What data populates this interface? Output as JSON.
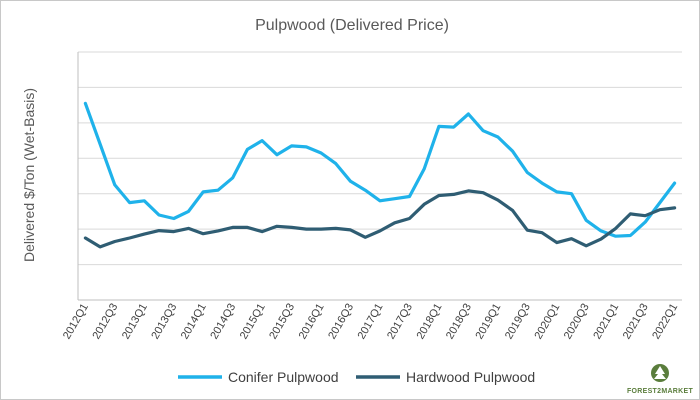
{
  "chart_data": {
    "type": "line",
    "title": "Pulpwood (Delivered Price)",
    "ylabel": "Delivered $/Ton (Wet-Basis)",
    "xlabel": "",
    "ylim": [
      0,
      7
    ],
    "y_tick_labels_shown": false,
    "grid": "horizontal",
    "legend": "bottom",
    "categories": [
      "2012Q1",
      "2012Q2",
      "2012Q3",
      "2012Q4",
      "2013Q1",
      "2013Q2",
      "2013Q3",
      "2013Q4",
      "2014Q1",
      "2014Q2",
      "2014Q3",
      "2014Q4",
      "2015Q1",
      "2015Q2",
      "2015Q3",
      "2015Q4",
      "2016Q1",
      "2016Q2",
      "2016Q3",
      "2016Q4",
      "2017Q1",
      "2017Q2",
      "2017Q3",
      "2017Q4",
      "2018Q1",
      "2018Q2",
      "2018Q3",
      "2018Q4",
      "2019Q1",
      "2019Q2",
      "2019Q3",
      "2019Q4",
      "2020Q1",
      "2020Q2",
      "2020Q3",
      "2020Q4",
      "2021Q1",
      "2021Q2",
      "2021Q3",
      "2021Q4",
      "2022Q1"
    ],
    "tick_labels": [
      "2012Q1",
      "2012Q3",
      "2013Q1",
      "2013Q3",
      "2014Q1",
      "2014Q3",
      "2015Q1",
      "2015Q3",
      "2016Q1",
      "2016Q3",
      "2017Q1",
      "2017Q3",
      "2018Q1",
      "2018Q3",
      "2019Q1",
      "2019Q3",
      "2020Q1",
      "2020Q3",
      "2021Q1",
      "2021Q3",
      "2022Q1"
    ],
    "series": [
      {
        "name": "Conifer Pulpwood",
        "color": "#1fb2ea",
        "values": [
          5.55,
          4.4,
          3.25,
          2.75,
          2.8,
          2.4,
          2.3,
          2.5,
          3.05,
          3.1,
          3.45,
          4.25,
          4.5,
          4.1,
          4.35,
          4.32,
          4.15,
          3.85,
          3.35,
          3.1,
          2.8,
          2.86,
          2.92,
          3.7,
          4.9,
          4.88,
          5.25,
          4.78,
          4.6,
          4.2,
          3.6,
          3.3,
          3.05,
          3.0,
          2.25,
          1.95,
          1.8,
          1.82,
          2.2,
          2.75,
          3.3
        ]
      },
      {
        "name": "Hardwood Pulpwood",
        "color": "#2f5d73",
        "values": [
          1.75,
          1.5,
          1.65,
          1.75,
          1.86,
          1.96,
          1.93,
          2.02,
          1.87,
          1.95,
          2.05,
          2.05,
          1.93,
          2.08,
          2.05,
          2.0,
          2.0,
          2.02,
          1.98,
          1.77,
          1.95,
          2.18,
          2.3,
          2.7,
          2.95,
          2.98,
          3.08,
          3.03,
          2.82,
          2.53,
          1.97,
          1.9,
          1.62,
          1.73,
          1.53,
          1.72,
          2.02,
          2.43,
          2.38,
          2.55,
          2.6
        ]
      }
    ]
  },
  "logo": {
    "text": "FOREST2MARKET",
    "icon": "tree-icon"
  }
}
